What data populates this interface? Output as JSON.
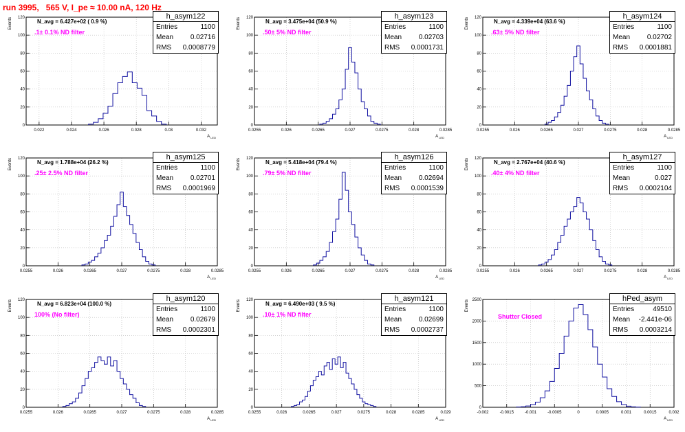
{
  "page": {
    "title": "run 3995,   565 V, I_pe ≈ 10.00 nA, 120 Hz"
  },
  "stat_labels": {
    "entries": "Entries",
    "mean": "Mean",
    "rms": "RMS"
  },
  "axis": {
    "ylabel": "Events",
    "xlabel": "A",
    "xlabel_sub": "LED"
  },
  "chart_data": [
    {
      "type": "bar",
      "name": "h_asym122",
      "navg": "N_avg = 6.427e+02 ( 0.9 %)",
      "filter": ".1± 0.1% ND filter",
      "entries": "1100",
      "mean": "0.02716",
      "rms": "0.0008779",
      "xlim": [
        0.0212,
        0.033
      ],
      "ylim": [
        0,
        120
      ],
      "xticks": [
        0.022,
        0.024,
        0.026,
        0.028,
        0.03,
        0.032
      ],
      "xticklabels": [
        "0.022",
        "0.024",
        "0.026",
        "0.028",
        "0.03",
        "0.032"
      ],
      "yticks": [
        0,
        20,
        40,
        60,
        80,
        100,
        120
      ],
      "x": [
        0.0252,
        0.0255,
        0.0258,
        0.0261,
        0.0264,
        0.0267,
        0.027,
        0.0273,
        0.0276,
        0.0279,
        0.0282,
        0.0285,
        0.0288,
        0.0291,
        0.0294,
        0.0297
      ],
      "values": [
        1,
        3,
        7,
        13,
        21,
        35,
        47,
        54,
        59,
        47,
        41,
        33,
        16,
        10,
        4,
        1
      ]
    },
    {
      "type": "bar",
      "name": "h_asym123",
      "navg": "N_avg = 3.475e+04 (50.9 %)",
      "filter": ".50± 5% ND filter",
      "entries": "1100",
      "mean": "0.02703",
      "rms": "0.0001731",
      "xlim": [
        0.0255,
        0.0285
      ],
      "ylim": [
        0,
        120
      ],
      "xticks": [
        0.0255,
        0.026,
        0.0265,
        0.027,
        0.0275,
        0.028,
        0.0285
      ],
      "xticklabels": [
        "0.0255",
        "0.026",
        "0.0265",
        "0.027",
        "0.0275",
        "0.028",
        "0.0285"
      ],
      "yticks": [
        0,
        20,
        40,
        60,
        80,
        100,
        120
      ],
      "x": [
        0.02655,
        0.0266,
        0.02665,
        0.0267,
        0.02675,
        0.0268,
        0.02685,
        0.0269,
        0.02695,
        0.027,
        0.02705,
        0.0271,
        0.02715,
        0.0272,
        0.02725,
        0.0273,
        0.02735,
        0.0274,
        0.02745
      ],
      "values": [
        1,
        2,
        4,
        7,
        12,
        18,
        28,
        40,
        62,
        86,
        70,
        58,
        40,
        26,
        18,
        10,
        4,
        2,
        1
      ]
    },
    {
      "type": "bar",
      "name": "h_asym124",
      "navg": "N_avg = 4.339e+04 (63.6 %)",
      "filter": ".63± 5% ND filter",
      "entries": "1100",
      "mean": "0.02702",
      "rms": "0.0001881",
      "xlim": [
        0.0255,
        0.0285
      ],
      "ylim": [
        0,
        120
      ],
      "xticks": [
        0.0255,
        0.026,
        0.0265,
        0.027,
        0.0275,
        0.028,
        0.0285
      ],
      "xticklabels": [
        "0.0255",
        "0.026",
        "0.0265",
        "0.027",
        "0.0275",
        "0.028",
        "0.0285"
      ],
      "yticks": [
        0,
        20,
        40,
        60,
        80,
        100,
        120
      ],
      "x": [
        0.0265,
        0.02655,
        0.0266,
        0.02665,
        0.0267,
        0.02675,
        0.0268,
        0.02685,
        0.0269,
        0.02695,
        0.027,
        0.02705,
        0.0271,
        0.02715,
        0.0272,
        0.02725,
        0.0273,
        0.02735,
        0.0274,
        0.02745
      ],
      "values": [
        1,
        3,
        5,
        9,
        14,
        22,
        32,
        44,
        60,
        76,
        88,
        68,
        52,
        38,
        28,
        18,
        10,
        5,
        2,
        1
      ]
    },
    {
      "type": "bar",
      "name": "h_asym125",
      "navg": "N_avg = 1.788e+04 (26.2 %)",
      "filter": ".25± 2.5% ND filter",
      "entries": "1100",
      "mean": "0.02701",
      "rms": "0.0001969",
      "xlim": [
        0.0255,
        0.0285
      ],
      "ylim": [
        0,
        120
      ],
      "xticks": [
        0.0255,
        0.026,
        0.0265,
        0.027,
        0.0275,
        0.028,
        0.0285
      ],
      "xticklabels": [
        "0.0255",
        "0.026",
        "0.0265",
        "0.027",
        "0.0275",
        "0.028",
        "0.0285"
      ],
      "yticks": [
        0,
        20,
        40,
        60,
        80,
        100,
        120
      ],
      "x": [
        0.0264,
        0.02645,
        0.0265,
        0.02655,
        0.0266,
        0.02665,
        0.0267,
        0.02675,
        0.0268,
        0.02685,
        0.0269,
        0.02695,
        0.027,
        0.02705,
        0.0271,
        0.02715,
        0.0272,
        0.02725,
        0.0273,
        0.02735,
        0.0274,
        0.02745,
        0.0275
      ],
      "values": [
        1,
        2,
        4,
        6,
        10,
        14,
        20,
        28,
        34,
        44,
        55,
        68,
        82,
        66,
        56,
        46,
        36,
        26,
        18,
        10,
        5,
        2,
        1
      ]
    },
    {
      "type": "bar",
      "name": "h_asym126",
      "navg": "N_avg = 5.418e+04 (79.4 %)",
      "filter": ".79± 5% ND filter",
      "entries": "1100",
      "mean": "0.02694",
      "rms": "0.0001539",
      "xlim": [
        0.0255,
        0.0285
      ],
      "ylim": [
        0,
        120
      ],
      "xticks": [
        0.0255,
        0.026,
        0.0265,
        0.027,
        0.0275,
        0.028,
        0.0285
      ],
      "xticklabels": [
        "0.0255",
        "0.026",
        "0.0265",
        "0.027",
        "0.0275",
        "0.028",
        "0.0285"
      ],
      "yticks": [
        0,
        20,
        40,
        60,
        80,
        100,
        120
      ],
      "x": [
        0.02645,
        0.0265,
        0.02655,
        0.0266,
        0.02665,
        0.0267,
        0.02675,
        0.0268,
        0.02685,
        0.0269,
        0.02695,
        0.027,
        0.02705,
        0.0271,
        0.02715,
        0.0272,
        0.02725,
        0.0273,
        0.02735
      ],
      "values": [
        1,
        3,
        6,
        10,
        16,
        26,
        38,
        52,
        74,
        104,
        84,
        60,
        46,
        32,
        20,
        12,
        6,
        2,
        1
      ]
    },
    {
      "type": "bar",
      "name": "h_asym127",
      "navg": "N_avg = 2.767e+04 (40.6 %)",
      "filter": ".40± 4% ND filter",
      "entries": "1100",
      "mean": "0.027",
      "rms": "0.0002104",
      "xlim": [
        0.0255,
        0.0285
      ],
      "ylim": [
        0,
        120
      ],
      "xticks": [
        0.0255,
        0.026,
        0.0265,
        0.027,
        0.0275,
        0.028,
        0.0285
      ],
      "xticklabels": [
        "0.0255",
        "0.026",
        "0.0265",
        "0.027",
        "0.0275",
        "0.028",
        "0.0285"
      ],
      "yticks": [
        0,
        20,
        40,
        60,
        80,
        100,
        120
      ],
      "x": [
        0.0264,
        0.02645,
        0.0265,
        0.02655,
        0.0266,
        0.02665,
        0.0267,
        0.02675,
        0.0268,
        0.02685,
        0.0269,
        0.02695,
        0.027,
        0.02705,
        0.0271,
        0.02715,
        0.0272,
        0.02725,
        0.0273,
        0.02735,
        0.0274,
        0.02745,
        0.0275
      ],
      "values": [
        1,
        2,
        4,
        7,
        12,
        18,
        26,
        34,
        44,
        52,
        60,
        66,
        76,
        70,
        60,
        52,
        40,
        28,
        18,
        10,
        5,
        2,
        1
      ]
    },
    {
      "type": "bar",
      "name": "h_asym120",
      "navg": "N_avg = 6.823e+04 (100.0 %)",
      "filter": "100% (No filter)",
      "entries": "1100",
      "mean": "0.02679",
      "rms": "0.0002301",
      "xlim": [
        0.0255,
        0.0285
      ],
      "ylim": [
        0,
        120
      ],
      "xticks": [
        0.0255,
        0.026,
        0.0265,
        0.027,
        0.0275,
        0.028,
        0.0285
      ],
      "xticklabels": [
        "0.0255",
        "0.026",
        "0.0265",
        "0.027",
        "0.0275",
        "0.028",
        "0.0285"
      ],
      "yticks": [
        0,
        20,
        40,
        60,
        80,
        100,
        120
      ],
      "x": [
        0.0261,
        0.02615,
        0.0262,
        0.02625,
        0.0263,
        0.02635,
        0.0264,
        0.02645,
        0.0265,
        0.02655,
        0.0266,
        0.02665,
        0.0267,
        0.02675,
        0.0268,
        0.02685,
        0.0269,
        0.02695,
        0.027,
        0.02705,
        0.0271,
        0.02715,
        0.0272,
        0.02725,
        0.0273,
        0.02735
      ],
      "values": [
        1,
        2,
        4,
        6,
        10,
        16,
        24,
        32,
        40,
        44,
        50,
        56,
        52,
        48,
        56,
        46,
        52,
        40,
        32,
        26,
        20,
        14,
        10,
        5,
        2,
        1
      ]
    },
    {
      "type": "bar",
      "name": "h_asym121",
      "navg": "N_avg = 6.490e+03 ( 9.5 %)",
      "filter": ".10± 1% ND filter",
      "entries": "1100",
      "mean": "0.02699",
      "rms": "0.0002737",
      "xlim": [
        0.0255,
        0.029
      ],
      "ylim": [
        0,
        120
      ],
      "xticks": [
        0.0255,
        0.026,
        0.0265,
        0.027,
        0.0275,
        0.028,
        0.0285,
        0.029
      ],
      "xticklabels": [
        "0.0255",
        "0.026",
        "0.0265",
        "0.027",
        "0.0275",
        "0.028",
        "0.0285",
        "0.029"
      ],
      "yticks": [
        0,
        20,
        40,
        60,
        80,
        100,
        120
      ],
      "x": [
        0.0262,
        0.02625,
        0.0263,
        0.02635,
        0.0264,
        0.02645,
        0.0265,
        0.02655,
        0.0266,
        0.02665,
        0.0267,
        0.02675,
        0.0268,
        0.02685,
        0.0269,
        0.02695,
        0.027,
        0.02705,
        0.0271,
        0.02715,
        0.0272,
        0.02725,
        0.0273,
        0.02735,
        0.0274,
        0.02745,
        0.0275,
        0.02755,
        0.0276,
        0.02765,
        0.0277
      ],
      "values": [
        1,
        2,
        3,
        6,
        8,
        12,
        18,
        24,
        30,
        34,
        40,
        36,
        46,
        50,
        42,
        54,
        48,
        56,
        44,
        50,
        38,
        32,
        26,
        20,
        14,
        10,
        6,
        4,
        3,
        2,
        1
      ]
    },
    {
      "type": "bar",
      "name": "hPed_asym",
      "navg": "",
      "filter": "Shutter Closed",
      "entries": "49510",
      "mean": "-2.441e-06",
      "rms": "0.0003214",
      "xlim": [
        -0.002,
        0.002
      ],
      "ylim": [
        0,
        2500
      ],
      "xticks": [
        -0.002,
        -0.0015,
        -0.001,
        -0.0005,
        0,
        0.0005,
        0.001,
        0.0015,
        0.002
      ],
      "xticklabels": [
        "-0.002",
        "-0.0015",
        "-0.001",
        "-0.0005",
        "0",
        "0.0005",
        "0.001",
        "0.0015",
        "0.002"
      ],
      "yticks": [
        0,
        500,
        1000,
        1500,
        2000,
        2500
      ],
      "x": [
        -0.00125,
        -0.00115,
        -0.00105,
        -0.00095,
        -0.00085,
        -0.00075,
        -0.00065,
        -0.00055,
        -0.00045,
        -0.00035,
        -0.00025,
        -0.00015,
        -5e-05,
        5e-05,
        0.00015,
        0.00025,
        0.00035,
        0.00045,
        0.00055,
        0.00065,
        0.00075,
        0.00085,
        0.00095,
        0.00105,
        0.00115,
        0.00125
      ],
      "values": [
        5,
        12,
        30,
        60,
        120,
        220,
        380,
        600,
        900,
        1250,
        1650,
        2000,
        2300,
        2380,
        2150,
        1800,
        1400,
        1000,
        700,
        430,
        250,
        130,
        60,
        25,
        10,
        4
      ]
    }
  ]
}
